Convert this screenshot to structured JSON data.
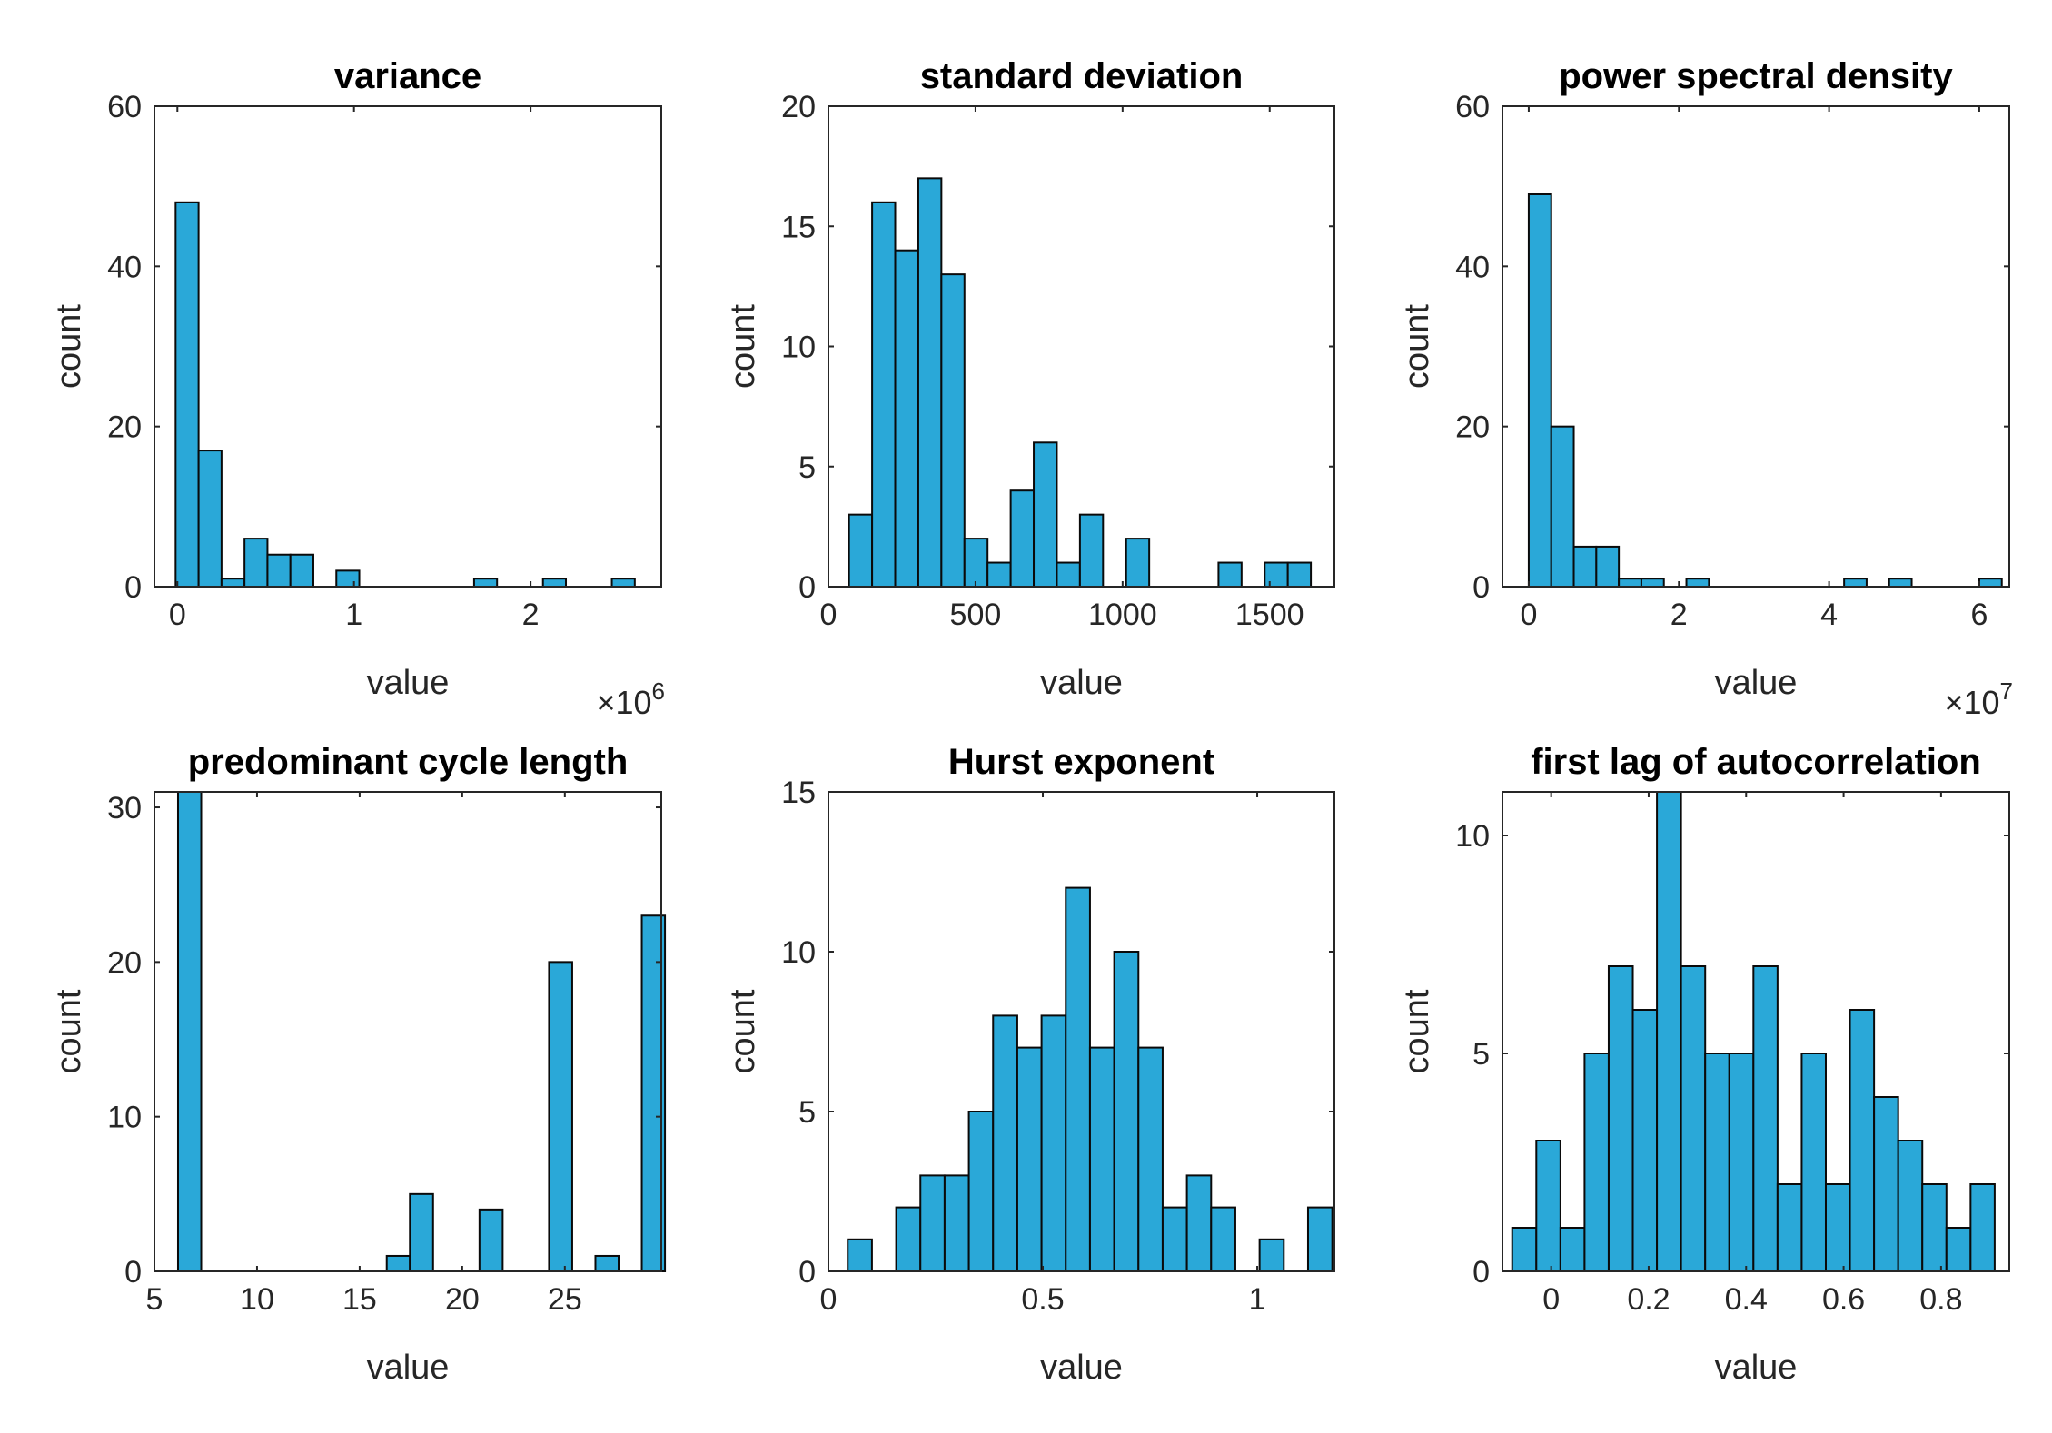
{
  "chart_data": [
    {
      "type": "bar",
      "title": "variance",
      "xlabel": "value",
      "ylabel": "count",
      "x_multiplier_label": "×10",
      "x_multiplier_exp": "6",
      "xlim": [
        -0.13,
        2.74
      ],
      "ylim": [
        0,
        60
      ],
      "xticks": [
        0,
        1,
        2
      ],
      "xtick_labels": [
        "0",
        "1",
        "2"
      ],
      "yticks": [
        0,
        20,
        40,
        60
      ],
      "ytick_labels": [
        "0",
        "20",
        "40",
        "60"
      ],
      "bin_start": -0.01,
      "bin_width": 0.13,
      "values": [
        48,
        17,
        1,
        6,
        4,
        4,
        0,
        2,
        0,
        0,
        0,
        0,
        0,
        1,
        0,
        0,
        1,
        0,
        0,
        1
      ]
    },
    {
      "type": "bar",
      "title": "standard deviation",
      "xlabel": "value",
      "ylabel": "count",
      "xlim": [
        0,
        1720
      ],
      "ylim": [
        0,
        20
      ],
      "xticks": [
        0,
        500,
        1000,
        1500
      ],
      "xtick_labels": [
        "0",
        "500",
        "1000",
        "1500"
      ],
      "yticks": [
        0,
        5,
        10,
        15,
        20
      ],
      "ytick_labels": [
        "0",
        "5",
        "10",
        "15",
        "20"
      ],
      "bin_start": 70,
      "bin_width": 78.5,
      "values": [
        3,
        16,
        14,
        17,
        13,
        2,
        1,
        4,
        6,
        1,
        3,
        0,
        2,
        0,
        0,
        0,
        1,
        0,
        1,
        1
      ]
    },
    {
      "type": "bar",
      "title": "power spectral density",
      "xlabel": "value",
      "ylabel": "count",
      "x_multiplier_label": "×10",
      "x_multiplier_exp": "7",
      "xlim": [
        -0.35,
        6.4
      ],
      "ylim": [
        0,
        60
      ],
      "xticks": [
        0,
        2,
        4,
        6
      ],
      "xtick_labels": [
        "0",
        "2",
        "4",
        "6"
      ],
      "yticks": [
        0,
        20,
        40,
        60
      ],
      "ytick_labels": [
        "0",
        "20",
        "40",
        "60"
      ],
      "bin_start": 0,
      "bin_width": 0.3,
      "values": [
        49,
        20,
        5,
        5,
        1,
        1,
        0,
        1,
        0,
        0,
        0,
        0,
        0,
        0,
        1,
        0,
        1,
        0,
        0,
        0,
        1
      ]
    },
    {
      "type": "bar",
      "title": "predominant cycle length",
      "xlabel": "value",
      "ylabel": "count",
      "xlim": [
        5,
        29.7
      ],
      "ylim": [
        0,
        31
      ],
      "xticks": [
        5,
        10,
        15,
        20,
        25
      ],
      "xtick_labels": [
        "5",
        "10",
        "15",
        "20",
        "25"
      ],
      "yticks": [
        0,
        10,
        20,
        30
      ],
      "ytick_labels": [
        "0",
        "10",
        "20",
        "30"
      ],
      "bin_start": 6.15,
      "bin_width": 1.13,
      "values": [
        31,
        0,
        0,
        0,
        0,
        0,
        0,
        0,
        0,
        1,
        5,
        0,
        0,
        4,
        0,
        0,
        20,
        0,
        1,
        0,
        23
      ]
    },
    {
      "type": "bar",
      "title": "Hurst exponent",
      "xlabel": "value",
      "ylabel": "count",
      "xlim": [
        0,
        1.18
      ],
      "ylim": [
        0,
        15
      ],
      "xticks": [
        0,
        0.5,
        1
      ],
      "xtick_labels": [
        "0",
        "0.5",
        "1"
      ],
      "yticks": [
        0,
        5,
        10,
        15
      ],
      "ytick_labels": [
        "0",
        "5",
        "10",
        "15"
      ],
      "bin_start": 0.045,
      "bin_width": 0.0565,
      "values": [
        1,
        0,
        2,
        3,
        3,
        5,
        8,
        7,
        8,
        12,
        7,
        10,
        7,
        2,
        3,
        2,
        0,
        1,
        0,
        2
      ]
    },
    {
      "type": "bar",
      "title": "first lag of autocorrelation",
      "xlabel": "value",
      "ylabel": "count",
      "xlim": [
        -0.1,
        0.94
      ],
      "ylim": [
        0,
        11
      ],
      "xticks": [
        0,
        0.2,
        0.4,
        0.6,
        0.8
      ],
      "xtick_labels": [
        "0",
        "0.2",
        "0.4",
        "0.6",
        "0.8"
      ],
      "yticks": [
        0,
        5,
        10
      ],
      "ytick_labels": [
        "0",
        "5",
        "10"
      ],
      "bin_start": -0.08,
      "bin_width": 0.0495,
      "values": [
        1,
        3,
        1,
        5,
        7,
        6,
        11,
        7,
        5,
        5,
        7,
        2,
        5,
        2,
        6,
        4,
        3,
        2,
        1,
        2
      ]
    }
  ]
}
